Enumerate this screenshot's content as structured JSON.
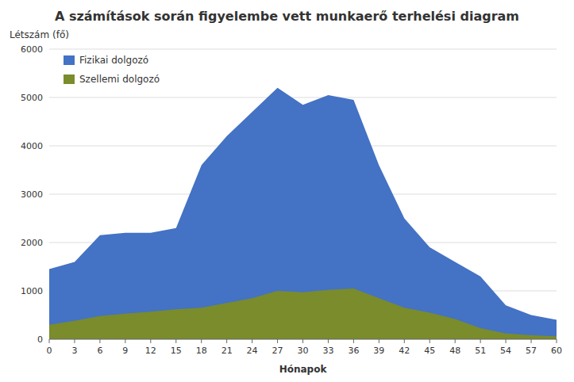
{
  "chart_data": {
    "type": "area",
    "title": "A számítások során figyelembe vett munkaerő terhelési diagram",
    "xlabel": "Hónapok",
    "ylabel": "Létszám (fő)",
    "x": [
      0,
      3,
      6,
      9,
      12,
      15,
      18,
      21,
      24,
      27,
      30,
      33,
      36,
      39,
      42,
      45,
      48,
      51,
      54,
      57,
      60
    ],
    "series": [
      {
        "name": "Fizikai dolgozó",
        "color": "#4472C4",
        "values": [
          1450,
          1600,
          2150,
          2200,
          2200,
          2300,
          3600,
          4200,
          4700,
          5200,
          4850,
          5050,
          4950,
          3600,
          2500,
          1900,
          1600,
          1300,
          700,
          500,
          400
        ]
      },
      {
        "name": "Szellemi dolgozó",
        "color": "#7A8C2B",
        "values": [
          300,
          380,
          480,
          530,
          570,
          620,
          650,
          750,
          850,
          1000,
          970,
          1020,
          1050,
          850,
          650,
          550,
          420,
          230,
          120,
          80,
          60
        ]
      }
    ],
    "xlim": [
      0,
      60
    ],
    "xticks": [
      0,
      3,
      6,
      9,
      12,
      15,
      18,
      21,
      24,
      27,
      30,
      33,
      36,
      39,
      42,
      45,
      48,
      51,
      54,
      57,
      60
    ],
    "ylim": [
      0,
      6000
    ],
    "yticks": [
      0,
      1000,
      2000,
      3000,
      4000,
      5000,
      6000
    ],
    "grid": true,
    "legend": "upper left",
    "stacked": false
  }
}
